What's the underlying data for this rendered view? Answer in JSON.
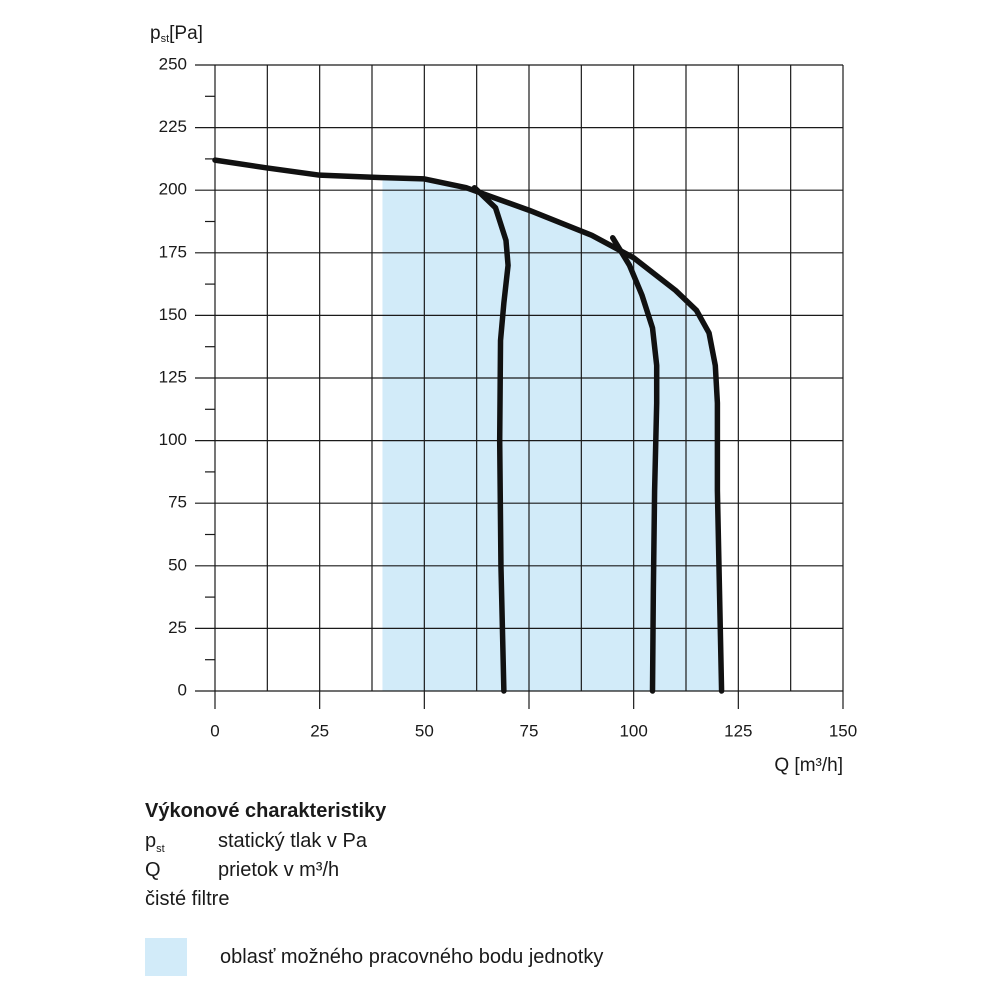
{
  "chart_data": {
    "type": "line",
    "ylabel": {
      "text": "p",
      "sub": "st",
      "unit": "[Pa]"
    },
    "xlabel": "Q [m³/h]",
    "xlim": [
      0,
      150
    ],
    "xticks": [
      0,
      25,
      50,
      75,
      100,
      125,
      150
    ],
    "xgrid": [
      12.5,
      37.5,
      62.5,
      87.5,
      112.5,
      137.5
    ],
    "ylim": [
      0,
      250
    ],
    "yticks": [
      0,
      25,
      50,
      75,
      100,
      125,
      150,
      175,
      200,
      225,
      250
    ],
    "yminor": [
      12.5,
      37.5,
      62.5,
      87.5,
      112.5,
      137.5,
      162.5,
      187.5,
      212.5,
      237.5
    ],
    "grid": true,
    "series": [
      {
        "name": "oblasť možného pracovného bodu jednotky",
        "kind": "area",
        "color": "#d2ebf9",
        "x": [
          40,
          40,
          50,
          60,
          75,
          90,
          100,
          110,
          115,
          118,
          119.5,
          120,
          120,
          120.5,
          121
        ],
        "values": [
          0,
          205,
          204.5,
          201,
          192,
          182,
          173,
          160,
          152,
          143,
          130,
          115,
          80,
          40,
          0
        ]
      },
      {
        "kind": "line",
        "color": "#111111",
        "x": [
          0,
          12,
          25,
          40,
          50,
          60,
          75,
          90,
          100,
          110,
          115,
          118,
          119.5,
          120,
          120,
          120.5,
          121
        ],
        "values": [
          212,
          209,
          206,
          205,
          204.5,
          201,
          192,
          182,
          173,
          160,
          152,
          143,
          130,
          115,
          80,
          40,
          0
        ]
      },
      {
        "kind": "line",
        "color": "#111111",
        "x": [
          62,
          67,
          69.5,
          70,
          69,
          68.2,
          68,
          68.3,
          69
        ],
        "values": [
          201,
          193,
          180,
          170,
          155,
          140,
          100,
          50,
          0
        ]
      },
      {
        "kind": "line",
        "color": "#111111",
        "x": [
          95,
          99,
          102,
          104.5,
          105.5,
          105.5,
          105,
          104.7,
          104.5
        ],
        "values": [
          181,
          170,
          158,
          145,
          130,
          115,
          80,
          40,
          0
        ]
      }
    ]
  },
  "notes": {
    "title": "Výkonové charakteristiky",
    "rows": [
      {
        "symbol": "p",
        "sub": "st",
        "text": "statický tlak v Pa"
      },
      {
        "symbol": "Q",
        "text": "prietok v m³/h"
      },
      {
        "text": "čisté filtre"
      }
    ]
  }
}
